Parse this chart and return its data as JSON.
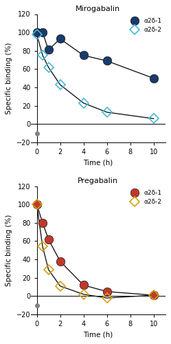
{
  "miro_title": "Mirogabalin",
  "preg_title": "Pregabalin",
  "xlabel": "Time (h)",
  "ylabel": "Specific binding (%)",
  "ylim": [
    -20,
    120
  ],
  "yticks": [
    -20,
    0,
    20,
    40,
    60,
    80,
    100,
    120
  ],
  "xticks": [
    0,
    2,
    4,
    6,
    8,
    10
  ],
  "legend_labels": [
    "α2δ-1",
    "α2δ-2"
  ],
  "miro_a2d1_x": [
    0,
    0.5,
    1,
    2,
    4,
    6,
    10
  ],
  "miro_a2d1_y": [
    100,
    100,
    81,
    93,
    75,
    69,
    50
  ],
  "miro_a2d1_color": "#1a3a6b",
  "miro_a2d1_marker": "o",
  "miro_a2d1_markersize": 9,
  "miro_a2d2_x": [
    0,
    0.5,
    1,
    2,
    4,
    6,
    10
  ],
  "miro_a2d2_y": [
    98,
    75,
    62,
    43,
    23,
    13,
    6
  ],
  "miro_a2d2_face": "none",
  "miro_a2d2_edge": "#4ab8d8",
  "miro_a2d2_marker": "D",
  "miro_a2d2_markersize": 7,
  "preg_a2d1_x": [
    0,
    0.5,
    1,
    2,
    4,
    6,
    10
  ],
  "preg_a2d1_y": [
    100,
    80,
    62,
    38,
    12,
    5,
    1
  ],
  "preg_a2d1_color": "#c0392b",
  "preg_a2d1_marker": "o",
  "preg_a2d1_markersize": 9,
  "preg_a2d2_x": [
    0,
    0.5,
    1,
    2,
    4,
    6,
    10
  ],
  "preg_a2d2_y": [
    100,
    54,
    29,
    11,
    2,
    -2,
    1
  ],
  "preg_a2d2_face": "none",
  "preg_a2d2_edge": "#d4a017",
  "preg_a2d2_marker": "D",
  "preg_a2d2_markersize": 7,
  "background_color": "#ffffff",
  "line_color": "#1a1a1a",
  "line_width": 1.0
}
